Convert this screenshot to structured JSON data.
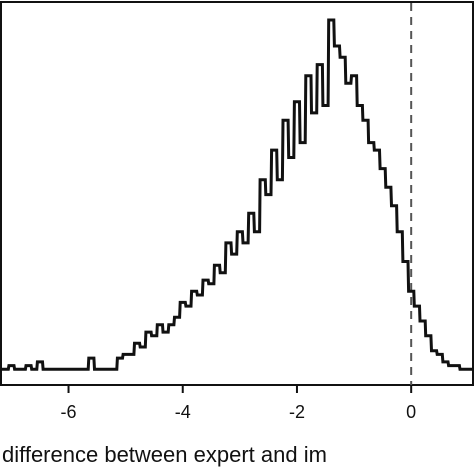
{
  "chart_data": {
    "type": "line",
    "title": "",
    "xlabel": "difference between expert and im",
    "ylabel": "",
    "xlim": [
      -7.2,
      1.1
    ],
    "xticks": [
      -6,
      -4,
      -2,
      0
    ],
    "xtick_labels": [
      "-6",
      "-4",
      "-2",
      "0"
    ],
    "grid": false,
    "reference_line": {
      "x": 0,
      "style": "dashed",
      "color": "#555555"
    },
    "line_color": "#111111",
    "step_width": 0.09,
    "series": [
      {
        "x": [
          -7.2,
          -7.1,
          -7.0,
          -6.9,
          -6.8,
          -6.7,
          -6.6,
          -6.5,
          -6.4,
          -6.3,
          -6.2,
          -6.1,
          -6.0,
          -5.9,
          -5.8,
          -5.7,
          -5.6,
          -5.5,
          -5.4,
          -5.3,
          -5.2,
          -5.1,
          -5.0,
          -4.9,
          -4.8,
          -4.7,
          -4.6,
          -4.5,
          -4.4,
          -4.3,
          -4.2,
          -4.1,
          -4.0,
          -3.9,
          -3.8,
          -3.7,
          -3.6,
          -3.5,
          -3.4,
          -3.3,
          -3.2,
          -3.1,
          -3.0,
          -2.9,
          -2.8,
          -2.7,
          -2.6,
          -2.5,
          -2.4,
          -2.3,
          -2.2,
          -2.1,
          -2.0,
          -1.9,
          -1.8,
          -1.7,
          -1.6,
          -1.5,
          -1.4,
          -1.3,
          -1.2,
          -1.1,
          -1.0,
          -0.9,
          -0.8,
          -0.7,
          -0.6,
          -0.5,
          -0.4,
          -0.3,
          -0.2,
          -0.1,
          0.0,
          0.1,
          0.2,
          0.3,
          0.4,
          0.5,
          0.6,
          0.7,
          0.8,
          0.9,
          1.0,
          1.1
        ],
        "y": [
          1,
          1,
          2,
          1,
          1,
          2,
          1,
          3,
          1,
          1,
          1,
          1,
          1,
          1,
          1,
          1,
          4,
          1,
          1,
          1,
          1,
          4,
          5,
          5,
          8,
          7,
          11,
          10,
          13,
          11,
          13,
          15,
          19,
          18,
          22,
          21,
          25,
          24,
          29,
          27,
          35,
          32,
          38,
          35,
          43,
          38,
          52,
          48,
          60,
          52,
          68,
          58,
          73,
          62,
          80,
          70,
          83,
          72,
          95,
          88,
          85,
          78,
          80,
          72,
          68,
          62,
          60,
          55,
          50,
          45,
          38,
          30,
          22,
          18,
          14,
          10,
          6,
          5,
          3,
          2,
          2,
          1,
          1,
          1
        ]
      }
    ]
  }
}
